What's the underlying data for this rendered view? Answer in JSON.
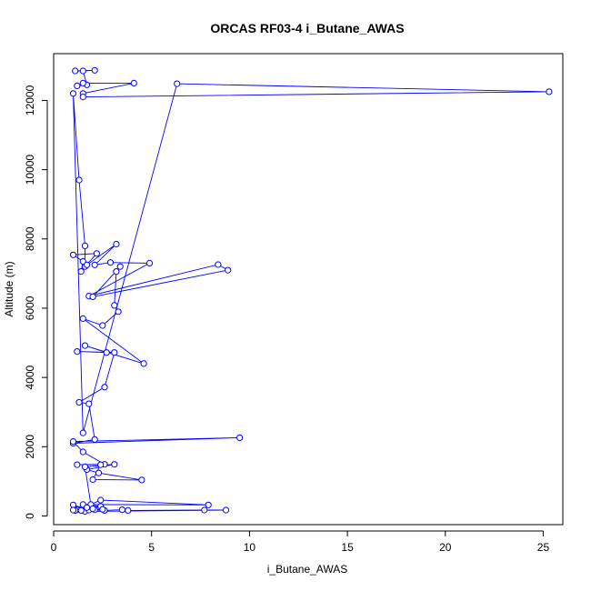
{
  "chart_data": {
    "type": "line",
    "title": "ORCAS RF03-4 i_Butane_AWAS",
    "xlabel": "i_Butane_AWAS",
    "ylabel": "Altitude (m)",
    "xlim": [
      0,
      26
    ],
    "ylim": [
      -250,
      13350
    ],
    "xticks": [
      0,
      5,
      10,
      15,
      20,
      25
    ],
    "yticks": [
      0,
      2000,
      4000,
      6000,
      8000,
      10000,
      12000
    ],
    "grid": false,
    "markers": "open-circle",
    "colors": {
      "series": "#0000ff",
      "axis": "#000000"
    },
    "series": [
      {
        "x": [
          1.1,
          2.1,
          1.5,
          1.7,
          1.2,
          1.5,
          4.1,
          1.5,
          1.5,
          25.3,
          6.3,
          1.5,
          1.0,
          1.3,
          1.6,
          1.6,
          2.2,
          1.0,
          1.5,
          1.4,
          1.7,
          3.2,
          2.1,
          2.9,
          4.9,
          1.8,
          8.4,
          8.9,
          2.0,
          3.4,
          3.2,
          3.1,
          3.3,
          2.5,
          1.5,
          4.6,
          1.6,
          2.7,
          1.2,
          3.1,
          2.6,
          1.3,
          1.8,
          2.1,
          1.0,
          9.5,
          1.0,
          1.5,
          2.6,
          1.2,
          2.4,
          2.0,
          4.5,
          2.3,
          1.7,
          3.1,
          1.6,
          1.9,
          2.4,
          7.9,
          1.5,
          2.4,
          1.2,
          1.1,
          1.0,
          1.7,
          2.6,
          3.5,
          3.8,
          7.7,
          8.8,
          1.6,
          1.8,
          2.1,
          2.5,
          1.4,
          1.0,
          1.7,
          2.0
        ],
        "y": [
          12850,
          12870,
          12850,
          12450,
          12420,
          12500,
          12500,
          12200,
          12100,
          12250,
          12480,
          2400,
          12200,
          9700,
          7800,
          7200,
          7580,
          7540,
          7350,
          7060,
          7250,
          7850,
          7250,
          7320,
          7300,
          6350,
          7260,
          7100,
          6330,
          7200,
          7060,
          6080,
          5900,
          5500,
          5700,
          4400,
          4920,
          4720,
          4750,
          4720,
          3720,
          3280,
          3240,
          2210,
          2100,
          2260,
          2150,
          1850,
          1490,
          1480,
          1480,
          1050,
          1040,
          1240,
          1340,
          1490,
          1420,
          330,
          460,
          320,
          330,
          280,
          180,
          160,
          320,
          190,
          160,
          180,
          160,
          170,
          170,
          130,
          170,
          180,
          190,
          160,
          170,
          240,
          210
        ]
      }
    ]
  }
}
